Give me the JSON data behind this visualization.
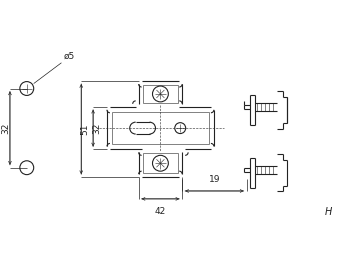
{
  "bg_color": "#ffffff",
  "line_color": "#222222",
  "figsize": [
    3.5,
    2.77
  ],
  "dpi": 100,
  "lw_main": 0.8,
  "lw_thin": 0.4,
  "lw_dim": 0.5
}
